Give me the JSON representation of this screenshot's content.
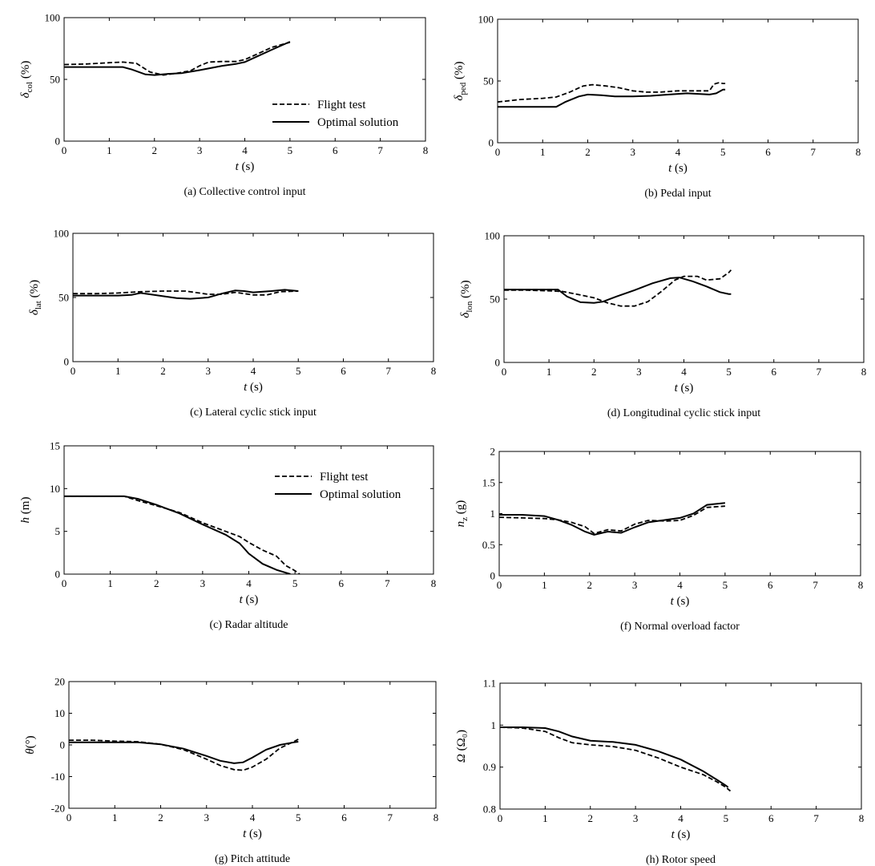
{
  "chart_data": [
    {
      "type": "line",
      "caption": "(a) Collective control input",
      "xlabel": "t (s)",
      "ylabel": {
        "symbol": "δ",
        "sub": "col",
        "unit": " (%)"
      },
      "xlim": [
        0,
        8
      ],
      "ylim": [
        0,
        100
      ],
      "xticks": [
        0,
        1,
        2,
        3,
        4,
        5,
        6,
        7,
        8
      ],
      "yticks": [
        0,
        50,
        100
      ],
      "legend": {
        "placement": "inside-lower-right",
        "entries": [
          "Flight test",
          "Optimal solution"
        ]
      },
      "series": [
        {
          "name": "Flight test",
          "style": "dashed",
          "x": [
            0,
            0.5,
            1.0,
            1.3,
            1.6,
            1.9,
            2.2,
            2.5,
            2.8,
            3.0,
            3.2,
            3.5,
            3.8,
            4.0,
            4.3,
            4.6,
            5.0
          ],
          "y": [
            62,
            62.5,
            63.5,
            64,
            63,
            56,
            53.5,
            55,
            57,
            61,
            64,
            64.5,
            64.5,
            66,
            71,
            76,
            80
          ]
        },
        {
          "name": "Optimal solution",
          "style": "solid",
          "x": [
            0,
            0.5,
            1.0,
            1.3,
            1.5,
            1.8,
            2.0,
            2.3,
            2.6,
            3.0,
            3.5,
            3.8,
            4.0,
            4.3,
            4.6,
            5.0
          ],
          "y": [
            60,
            60,
            60,
            60,
            58,
            54,
            53.5,
            54.5,
            55,
            57.5,
            61,
            62.5,
            64,
            69,
            74,
            80.5
          ]
        }
      ]
    },
    {
      "type": "line",
      "caption": "(b) Pedal input",
      "xlabel": "t (s)",
      "ylabel": {
        "symbol": "δ",
        "sub": "ped",
        "unit": " (%)"
      },
      "xlim": [
        0,
        8
      ],
      "ylim": [
        0,
        100
      ],
      "xticks": [
        0,
        1,
        2,
        3,
        4,
        5,
        6,
        7,
        8
      ],
      "yticks": [
        0,
        50,
        100
      ],
      "series": [
        {
          "name": "Flight test",
          "style": "dashed",
          "x": [
            0,
            0.5,
            1.0,
            1.3,
            1.6,
            1.9,
            2.1,
            2.4,
            2.7,
            3.0,
            3.3,
            3.6,
            4.0,
            4.4,
            4.7,
            4.8,
            4.9,
            5.0,
            5.05
          ],
          "y": [
            33,
            35,
            36,
            37,
            41,
            46,
            47,
            46,
            44.5,
            42,
            41,
            41,
            42,
            42,
            42,
            47.5,
            48.5,
            48,
            48
          ]
        },
        {
          "name": "Optimal solution",
          "style": "solid",
          "x": [
            0,
            0.5,
            1.0,
            1.3,
            1.5,
            1.8,
            2.0,
            2.3,
            2.6,
            3.0,
            3.4,
            3.8,
            4.2,
            4.5,
            4.7,
            4.85,
            5.0,
            5.05
          ],
          "y": [
            29,
            29,
            29,
            29,
            33,
            37.5,
            39,
            38.5,
            37.5,
            37.5,
            38,
            39,
            40,
            39.5,
            39,
            40,
            43,
            43
          ]
        }
      ]
    },
    {
      "type": "line",
      "caption": "(c) Lateral cyclic stick input",
      "xlabel": "t (s)",
      "ylabel": {
        "symbol": "δ",
        "sub": "lat",
        "unit": " (%)"
      },
      "xlim": [
        0,
        8
      ],
      "ylim": [
        0,
        100
      ],
      "xticks": [
        0,
        1,
        2,
        3,
        4,
        5,
        6,
        7,
        8
      ],
      "yticks": [
        0,
        50,
        100
      ],
      "series": [
        {
          "name": "Flight test",
          "style": "dashed",
          "x": [
            0,
            0.5,
            1.0,
            1.5,
            2.0,
            2.5,
            2.8,
            3.0,
            3.3,
            3.6,
            3.8,
            4.0,
            4.3,
            4.6,
            5.0
          ],
          "y": [
            53,
            53,
            53.5,
            54.5,
            55,
            55,
            53.5,
            52.5,
            52.5,
            54,
            53,
            52,
            52,
            54.5,
            55
          ]
        },
        {
          "name": "Optimal solution",
          "style": "solid",
          "x": [
            0,
            0.5,
            1.0,
            1.3,
            1.5,
            1.8,
            2.0,
            2.3,
            2.6,
            3.0,
            3.3,
            3.6,
            3.8,
            4.0,
            4.4,
            4.7,
            5.0
          ],
          "y": [
            51.5,
            51.5,
            51.5,
            52,
            53.5,
            52,
            51,
            49.5,
            49,
            50,
            53,
            55.5,
            55,
            54,
            55,
            56,
            55
          ]
        }
      ]
    },
    {
      "type": "line",
      "caption": "(d) Longitudinal cyclic stick input",
      "xlabel": "t (s)",
      "ylabel": {
        "symbol": "δ",
        "sub": "lon",
        "unit": " (%)"
      },
      "xlim": [
        0,
        8
      ],
      "ylim": [
        0,
        100
      ],
      "xticks": [
        0,
        1,
        2,
        3,
        4,
        5,
        6,
        7,
        8
      ],
      "yticks": [
        0,
        50,
        100
      ],
      "series": [
        {
          "name": "Flight test",
          "style": "dashed",
          "x": [
            0,
            0.5,
            1.0,
            1.3,
            1.6,
            2.0,
            2.3,
            2.6,
            2.9,
            3.2,
            3.5,
            3.8,
            4.0,
            4.3,
            4.5,
            4.8,
            5.0,
            5.05
          ],
          "y": [
            57,
            57,
            56.5,
            56,
            54,
            51,
            47,
            44.5,
            44.5,
            48,
            56,
            65,
            68,
            68,
            65,
            66,
            71,
            73
          ]
        },
        {
          "name": "Optimal solution",
          "style": "solid",
          "x": [
            0,
            0.5,
            1.0,
            1.2,
            1.4,
            1.7,
            2.0,
            2.2,
            2.5,
            2.9,
            3.3,
            3.7,
            3.9,
            4.2,
            4.5,
            4.8,
            5.0,
            5.05
          ],
          "y": [
            57.5,
            57.5,
            57.5,
            57.5,
            52,
            47.5,
            47,
            48,
            52,
            57,
            62.5,
            66.5,
            67,
            64,
            60,
            55.5,
            54,
            54
          ]
        }
      ]
    },
    {
      "type": "line",
      "caption": "(c) Radar altitude",
      "xlabel": "t (s)",
      "ylabel": {
        "symbol": "h",
        "sub": "",
        "unit": " (m)"
      },
      "xlim": [
        0,
        8
      ],
      "ylim": [
        0,
        15
      ],
      "xticks": [
        0,
        1,
        2,
        3,
        4,
        5,
        6,
        7,
        8
      ],
      "yticks": [
        0,
        5,
        10,
        15
      ],
      "legend": {
        "placement": "top-right",
        "entries": [
          "Flight test",
          "Optimal solution"
        ]
      },
      "series": [
        {
          "name": "Flight test",
          "style": "dashed",
          "x": [
            0,
            0.5,
            1.0,
            1.3,
            1.6,
            2.0,
            2.5,
            3.0,
            3.5,
            3.8,
            4.0,
            4.3,
            4.6,
            4.8,
            5.0,
            5.1
          ],
          "y": [
            9.1,
            9.1,
            9.1,
            9.1,
            8.6,
            8.0,
            7.2,
            6.0,
            5.0,
            4.4,
            3.7,
            2.8,
            2.1,
            1.0,
            0.4,
            0.0
          ]
        },
        {
          "name": "Optimal solution",
          "style": "solid",
          "x": [
            0,
            0.5,
            1.0,
            1.3,
            1.6,
            2.0,
            2.5,
            3.0,
            3.5,
            3.8,
            4.0,
            4.3,
            4.6,
            4.9
          ],
          "y": [
            9.1,
            9.1,
            9.1,
            9.1,
            8.8,
            8.1,
            7.1,
            5.8,
            4.6,
            3.6,
            2.4,
            1.2,
            0.5,
            0.0
          ]
        }
      ]
    },
    {
      "type": "line",
      "caption": "(f) Normal overload factor",
      "xlabel": "t (s)",
      "ylabel": {
        "symbol": "n",
        "sub": "z",
        "unit": " (g)"
      },
      "xlim": [
        0,
        8
      ],
      "ylim": [
        0,
        2
      ],
      "xticks": [
        0,
        1,
        2,
        3,
        4,
        5,
        6,
        7,
        8
      ],
      "yticks": [
        0,
        0.5,
        1,
        1.5,
        2
      ],
      "series": [
        {
          "name": "Flight test",
          "style": "dashed",
          "x": [
            0,
            0.5,
            1.0,
            1.3,
            1.6,
            1.9,
            2.1,
            2.4,
            2.7,
            3.0,
            3.3,
            3.7,
            4.0,
            4.3,
            4.6,
            5.0
          ],
          "y": [
            0.94,
            0.93,
            0.92,
            0.9,
            0.86,
            0.79,
            0.68,
            0.74,
            0.72,
            0.83,
            0.89,
            0.88,
            0.89,
            0.97,
            1.1,
            1.12
          ]
        },
        {
          "name": "Optimal solution",
          "style": "solid",
          "x": [
            0,
            0.5,
            1.0,
            1.3,
            1.6,
            1.9,
            2.1,
            2.4,
            2.7,
            3.0,
            3.3,
            3.7,
            4.0,
            4.3,
            4.6,
            5.0
          ],
          "y": [
            0.98,
            0.98,
            0.96,
            0.9,
            0.82,
            0.71,
            0.66,
            0.71,
            0.69,
            0.78,
            0.86,
            0.9,
            0.93,
            1.0,
            1.14,
            1.17
          ]
        }
      ]
    },
    {
      "type": "line",
      "caption": "(g) Pitch attitude",
      "xlabel": "t (s)",
      "ylabel": {
        "symbol": "θ",
        "sub": "",
        "unit": "(°)"
      },
      "xlim": [
        0,
        8
      ],
      "ylim": [
        -20,
        20
      ],
      "xticks": [
        0,
        1,
        2,
        3,
        4,
        5,
        6,
        7,
        8
      ],
      "yticks": [
        -20,
        -10,
        0,
        10,
        20
      ],
      "series": [
        {
          "name": "Flight test",
          "style": "dashed",
          "x": [
            0,
            0.5,
            1.0,
            1.5,
            2.0,
            2.5,
            3.0,
            3.3,
            3.6,
            3.8,
            4.0,
            4.3,
            4.6,
            4.9,
            5.0
          ],
          "y": [
            1.5,
            1.5,
            1.2,
            1.0,
            0.2,
            -1.5,
            -4.5,
            -6.5,
            -7.8,
            -8.0,
            -7.0,
            -4.5,
            -1.0,
            1.0,
            1.8
          ]
        },
        {
          "name": "Optimal solution",
          "style": "solid",
          "x": [
            0,
            0.5,
            1.0,
            1.5,
            2.0,
            2.5,
            3.0,
            3.3,
            3.6,
            3.8,
            4.0,
            4.3,
            4.6,
            4.9,
            5.0
          ],
          "y": [
            0.8,
            0.8,
            0.8,
            0.8,
            0.2,
            -1.2,
            -3.5,
            -5.0,
            -5.8,
            -5.5,
            -4.0,
            -1.5,
            0.0,
            0.8,
            1.0
          ]
        }
      ]
    },
    {
      "type": "line",
      "caption": "(h) Rotor speed",
      "xlabel": "t (s)",
      "ylabel": {
        "symbol": "Ω",
        "sub": "",
        "unit": " (Ω₀)"
      },
      "xlim": [
        0,
        8
      ],
      "ylim": [
        0.8,
        1.1
      ],
      "xticks": [
        0,
        1,
        2,
        3,
        4,
        5,
        6,
        7,
        8
      ],
      "yticks": [
        0.8,
        0.9,
        1,
        1.1
      ],
      "series": [
        {
          "name": "Flight test",
          "style": "dashed",
          "x": [
            0,
            0.5,
            1.0,
            1.3,
            1.6,
            2.0,
            2.5,
            3.0,
            3.5,
            4.0,
            4.5,
            4.8,
            5.0,
            5.1
          ],
          "y": [
            0.995,
            0.993,
            0.985,
            0.97,
            0.958,
            0.953,
            0.949,
            0.94,
            0.922,
            0.9,
            0.882,
            0.865,
            0.852,
            0.843
          ]
        },
        {
          "name": "Optimal solution",
          "style": "solid",
          "x": [
            0,
            0.5,
            1.0,
            1.3,
            1.6,
            2.0,
            2.5,
            3.0,
            3.5,
            4.0,
            4.5,
            4.8,
            5.0,
            5.05
          ],
          "y": [
            0.995,
            0.995,
            0.993,
            0.985,
            0.973,
            0.963,
            0.96,
            0.953,
            0.938,
            0.918,
            0.89,
            0.87,
            0.856,
            0.852
          ]
        }
      ]
    }
  ]
}
